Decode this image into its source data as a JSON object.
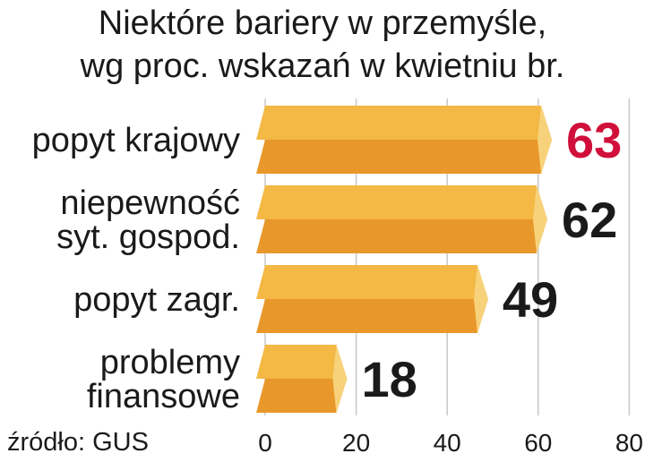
{
  "chart_data": {
    "type": "bar",
    "orientation": "horizontal",
    "title_lines": [
      "Niektóre bariery w przemyśle,",
      "wg proc. wskazań w kwietniu br."
    ],
    "categories": [
      [
        "popyt krajowy"
      ],
      [
        "niepewność",
        "syt. gospod."
      ],
      [
        "popyt zagr."
      ],
      [
        "problemy",
        "finansowe"
      ]
    ],
    "values": [
      63,
      62,
      49,
      18
    ],
    "value_colors": [
      "#d0103a",
      "#1a1a1a",
      "#1a1a1a",
      "#1a1a1a"
    ],
    "xlim": [
      0,
      80
    ],
    "xticks": [
      "0",
      "20",
      "40",
      "60",
      "80"
    ],
    "grid": true,
    "bar_color_top": "#f4b844",
    "bar_color_bottom": "#e8982a",
    "bar_tip_color": "#f7d27a"
  },
  "source": "źródło: GUS"
}
